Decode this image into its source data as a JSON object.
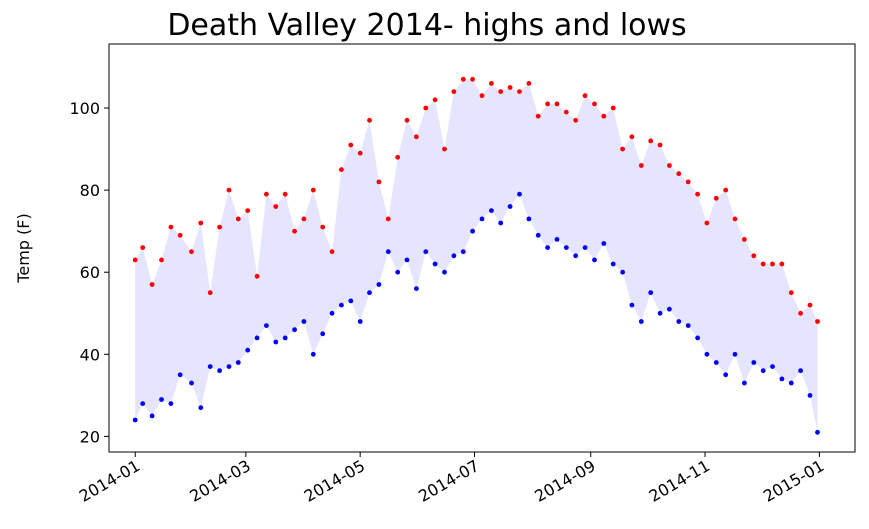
{
  "chart_data": {
    "type": "scatter",
    "title": "Death Valley 2014- highs and lows",
    "xlabel": "",
    "ylabel": "Temp (F)",
    "x_ticks": [
      "2014-01",
      "2014-03",
      "2014-05",
      "2014-07",
      "2014-09",
      "2014-11",
      "2015-01"
    ],
    "y_ticks": [
      "20",
      "40",
      "60",
      "80",
      "100"
    ],
    "xlim": [
      "2013-12-18",
      "2015-01-20"
    ],
    "ylim": [
      16.2,
      115.6
    ],
    "grid": false,
    "legend": "none",
    "fill_between": {
      "color": "#e5e5ff"
    },
    "series": [
      {
        "color": "#ff0000",
        "x": [
          "2014-01-01",
          "2014-01-05",
          "2014-01-10",
          "2014-01-15",
          "2014-01-20",
          "2014-01-25",
          "2014-01-31",
          "2014-02-05",
          "2014-02-10",
          "2014-02-15",
          "2014-02-20",
          "2014-02-25",
          "2014-03-02",
          "2014-03-07",
          "2014-03-12",
          "2014-03-17",
          "2014-03-22",
          "2014-03-27",
          "2014-04-01",
          "2014-04-06",
          "2014-04-11",
          "2014-04-16",
          "2014-04-21",
          "2014-04-26",
          "2014-05-01",
          "2014-05-06",
          "2014-05-11",
          "2014-05-16",
          "2014-05-21",
          "2014-05-26",
          "2014-05-31",
          "2014-06-05",
          "2014-06-10",
          "2014-06-15",
          "2014-06-20",
          "2014-06-25",
          "2014-06-30",
          "2014-07-05",
          "2014-07-10",
          "2014-07-15",
          "2014-07-20",
          "2014-07-25",
          "2014-07-30",
          "2014-08-04",
          "2014-08-09",
          "2014-08-14",
          "2014-08-19",
          "2014-08-24",
          "2014-08-29",
          "2014-09-03",
          "2014-09-08",
          "2014-09-13",
          "2014-09-18",
          "2014-09-23",
          "2014-09-28",
          "2014-10-03",
          "2014-10-08",
          "2014-10-13",
          "2014-10-18",
          "2014-10-23",
          "2014-10-28",
          "2014-11-02",
          "2014-11-07",
          "2014-11-12",
          "2014-11-17",
          "2014-11-22",
          "2014-11-27",
          "2014-12-02",
          "2014-12-07",
          "2014-12-12",
          "2014-12-17",
          "2014-12-22",
          "2014-12-27",
          "2014-12-31"
        ],
        "values": [
          63,
          66,
          57,
          63,
          71,
          69,
          65,
          72,
          55,
          71,
          80,
          73,
          75,
          59,
          79,
          76,
          79,
          70,
          73,
          80,
          71,
          65,
          85,
          91,
          89,
          97,
          82,
          73,
          88,
          97,
          93,
          100,
          102,
          90,
          104,
          107,
          107,
          103,
          106,
          104,
          105,
          104,
          106,
          98,
          101,
          101,
          99,
          97,
          103,
          101,
          98,
          100,
          90,
          93,
          86,
          92,
          91,
          86,
          84,
          82,
          79,
          72,
          78,
          80,
          73,
          68,
          64,
          62,
          62,
          62,
          55,
          50,
          52,
          48
        ]
      },
      {
        "color": "#0000ff",
        "x": [
          "2014-01-01",
          "2014-01-05",
          "2014-01-10",
          "2014-01-15",
          "2014-01-20",
          "2014-01-25",
          "2014-01-31",
          "2014-02-05",
          "2014-02-10",
          "2014-02-15",
          "2014-02-20",
          "2014-02-25",
          "2014-03-02",
          "2014-03-07",
          "2014-03-12",
          "2014-03-17",
          "2014-03-22",
          "2014-03-27",
          "2014-04-01",
          "2014-04-06",
          "2014-04-11",
          "2014-04-16",
          "2014-04-21",
          "2014-04-26",
          "2014-05-01",
          "2014-05-06",
          "2014-05-11",
          "2014-05-16",
          "2014-05-21",
          "2014-05-26",
          "2014-05-31",
          "2014-06-05",
          "2014-06-10",
          "2014-06-15",
          "2014-06-20",
          "2014-06-25",
          "2014-06-30",
          "2014-07-05",
          "2014-07-10",
          "2014-07-15",
          "2014-07-20",
          "2014-07-25",
          "2014-07-30",
          "2014-08-04",
          "2014-08-09",
          "2014-08-14",
          "2014-08-19",
          "2014-08-24",
          "2014-08-29",
          "2014-09-03",
          "2014-09-08",
          "2014-09-13",
          "2014-09-18",
          "2014-09-23",
          "2014-09-28",
          "2014-10-03",
          "2014-10-08",
          "2014-10-13",
          "2014-10-18",
          "2014-10-23",
          "2014-10-28",
          "2014-11-02",
          "2014-11-07",
          "2014-11-12",
          "2014-11-17",
          "2014-11-22",
          "2014-11-27",
          "2014-12-02",
          "2014-12-07",
          "2014-12-12",
          "2014-12-17",
          "2014-12-22",
          "2014-12-27",
          "2014-12-31"
        ],
        "values": [
          24,
          28,
          25,
          29,
          28,
          35,
          33,
          27,
          37,
          36,
          37,
          38,
          41,
          44,
          47,
          43,
          44,
          46,
          48,
          40,
          45,
          50,
          52,
          53,
          48,
          55,
          57,
          65,
          60,
          63,
          56,
          65,
          62,
          60,
          64,
          65,
          70,
          73,
          75,
          72,
          76,
          79,
          73,
          69,
          66,
          68,
          66,
          64,
          66,
          63,
          67,
          62,
          60,
          52,
          48,
          55,
          50,
          51,
          48,
          47,
          44,
          40,
          38,
          35,
          40,
          33,
          38,
          36,
          37,
          34,
          33,
          36,
          30,
          21
        ]
      }
    ]
  }
}
